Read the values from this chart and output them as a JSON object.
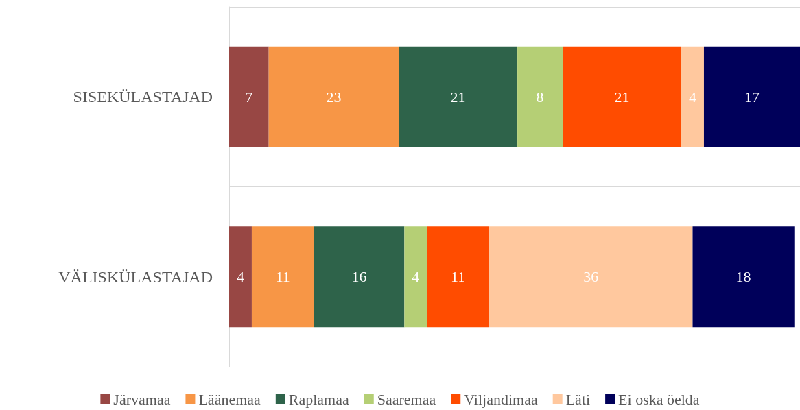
{
  "chart_data": {
    "type": "bar",
    "orientation": "horizontal",
    "stacked": true,
    "data_labels": true,
    "grid": "y",
    "legend": "bottom",
    "tick_labels": "y",
    "categories": [
      "SISEKÜLASTAJAD",
      "VÄLISKÜLASTAJAD"
    ],
    "series": [
      {
        "name": "Järvamaa",
        "color": "#984744",
        "values": [
          7,
          4
        ]
      },
      {
        "name": "Läänemaa",
        "color": "#f79646",
        "values": [
          23,
          11
        ]
      },
      {
        "name": "Raplamaa",
        "color": "#2e634a",
        "values": [
          21,
          16
        ]
      },
      {
        "name": "Saaremaa",
        "color": "#b5cf75",
        "values": [
          8,
          4
        ]
      },
      {
        "name": "Viljandimaa",
        "color": "#ff4c00",
        "values": [
          21,
          11
        ]
      },
      {
        "name": "Läti",
        "color": "#ffc89e",
        "values": [
          4,
          36
        ]
      },
      {
        "name": "Ei oska öelda",
        "color": "#00005a",
        "values": [
          17,
          18
        ]
      }
    ]
  }
}
